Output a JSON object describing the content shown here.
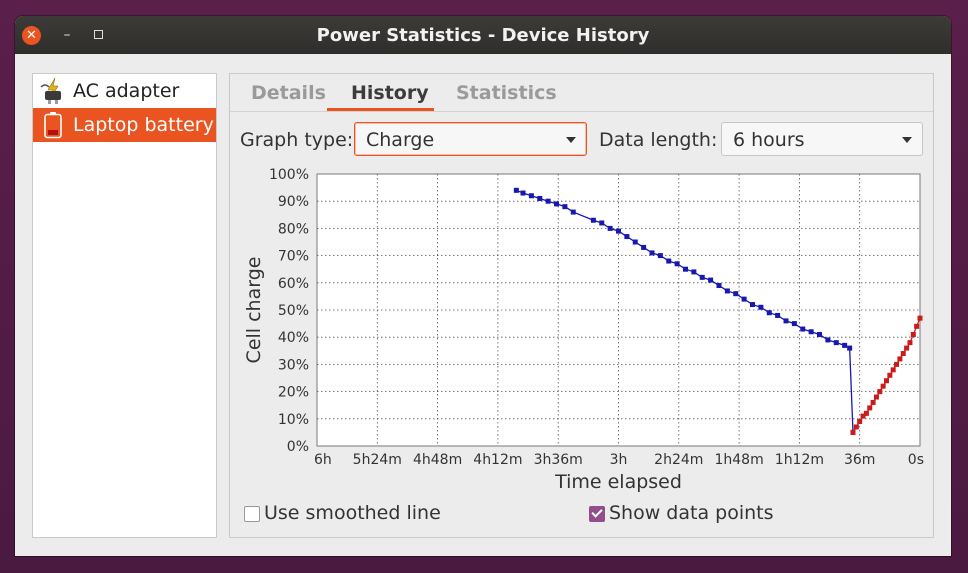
{
  "window": {
    "title": "Power Statistics - Device History"
  },
  "sidebar": {
    "items": [
      {
        "label": "AC adapter",
        "icon": "ac-adapter-icon",
        "selected": false
      },
      {
        "label": "Laptop battery",
        "icon": "battery-icon",
        "selected": true
      }
    ]
  },
  "tabs": [
    {
      "label": "Details",
      "active": false
    },
    {
      "label": "History",
      "active": true
    },
    {
      "label": "Statistics",
      "active": false
    }
  ],
  "controls": {
    "graph_type_label": "Graph type:",
    "graph_type_value": "Charge",
    "data_length_label": "Data length:",
    "data_length_value": "6 hours",
    "smoothed_label": "Use smoothed line",
    "smoothed_checked": false,
    "points_label": "Show data points",
    "points_checked": true
  },
  "colors": {
    "accent": "#e95420",
    "discharge": "#1818b0",
    "charge": "#cc1a1a",
    "checkbox": "#924d8b"
  },
  "chart_data": {
    "type": "line",
    "xlabel": "Time elapsed",
    "ylabel": "Cell charge",
    "x_ticks": [
      "6h",
      "5h24m",
      "4h48m",
      "4h12m",
      "3h36m",
      "3h",
      "2h24m",
      "1h48m",
      "1h12m",
      "36m",
      "0s"
    ],
    "y_ticks": [
      "0%",
      "10%",
      "20%",
      "30%",
      "40%",
      "50%",
      "60%",
      "70%",
      "80%",
      "90%",
      "100%"
    ],
    "xlim_minutes_ago": [
      360,
      0
    ],
    "ylim": [
      0,
      100
    ],
    "grid": true,
    "series": [
      {
        "color": "#1818b0",
        "points_minutes_ago": [
          [
            241,
            94
          ],
          [
            237,
            93
          ],
          [
            232,
            92
          ],
          [
            227,
            91
          ],
          [
            222,
            90
          ],
          [
            217,
            89
          ],
          [
            212,
            88
          ],
          [
            207,
            86
          ],
          [
            195,
            83
          ],
          [
            190,
            82
          ],
          [
            185,
            80
          ],
          [
            180,
            79
          ],
          [
            175,
            77
          ],
          [
            170,
            75
          ],
          [
            165,
            73
          ],
          [
            160,
            71
          ],
          [
            155,
            70
          ],
          [
            150,
            68
          ],
          [
            145,
            67
          ],
          [
            140,
            65
          ],
          [
            135,
            64
          ],
          [
            130,
            62
          ],
          [
            125,
            61
          ],
          [
            120,
            59
          ],
          [
            115,
            57
          ],
          [
            110,
            56
          ],
          [
            105,
            54
          ],
          [
            100,
            52
          ],
          [
            95,
            51
          ],
          [
            90,
            49
          ],
          [
            85,
            48
          ],
          [
            80,
            46
          ],
          [
            75,
            45
          ],
          [
            70,
            43
          ],
          [
            65,
            42
          ],
          [
            60,
            41
          ],
          [
            55,
            39
          ],
          [
            50,
            38
          ],
          [
            45,
            37
          ],
          [
            42,
            36
          ],
          [
            40,
            5
          ]
        ]
      },
      {
        "color": "#cc1a1a",
        "points_minutes_ago": [
          [
            40,
            5
          ],
          [
            38,
            7
          ],
          [
            36,
            9
          ],
          [
            34,
            11
          ],
          [
            32,
            12
          ],
          [
            30,
            14
          ],
          [
            28,
            16
          ],
          [
            26,
            18
          ],
          [
            24,
            20
          ],
          [
            22,
            22
          ],
          [
            20,
            24
          ],
          [
            18,
            26
          ],
          [
            16,
            28
          ],
          [
            14,
            30
          ],
          [
            12,
            32
          ],
          [
            10,
            34
          ],
          [
            8,
            36
          ],
          [
            6,
            38
          ],
          [
            4,
            41
          ],
          [
            2,
            44
          ],
          [
            0,
            47
          ]
        ]
      }
    ]
  }
}
